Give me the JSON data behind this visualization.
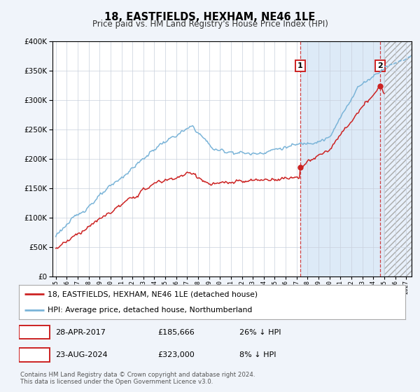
{
  "title": "18, EASTFIELDS, HEXHAM, NE46 1LE",
  "subtitle": "Price paid vs. HM Land Registry's House Price Index (HPI)",
  "ylim": [
    0,
    400000
  ],
  "yticks": [
    0,
    50000,
    100000,
    150000,
    200000,
    250000,
    300000,
    350000,
    400000
  ],
  "xlim_start": 1994.7,
  "xlim_end": 2027.5,
  "hpi_color": "#7ab4d8",
  "price_color": "#cc2222",
  "transaction1_x": 2017.32,
  "transaction1_y": 185666,
  "transaction1_date": "28-APR-2017",
  "transaction1_price": "£185,666",
  "transaction1_note": "26% ↓ HPI",
  "transaction1_label": "1",
  "transaction2_x": 2024.63,
  "transaction2_y": 323000,
  "transaction2_date": "23-AUG-2024",
  "transaction2_price": "£323,000",
  "transaction2_note": "8% ↓ HPI",
  "transaction2_label": "2",
  "legend_line1": "18, EASTFIELDS, HEXHAM, NE46 1LE (detached house)",
  "legend_line2": "HPI: Average price, detached house, Northumberland",
  "footer": "Contains HM Land Registry data © Crown copyright and database right 2024.\nThis data is licensed under the Open Government Licence v3.0.",
  "bg_color": "#f0f4fa",
  "plot_bg": "#ffffff",
  "shade_color": "#ddeaf7",
  "hatch_color": "#aaaaaa",
  "future_start": 2025.0,
  "shade_start": 2017.32
}
